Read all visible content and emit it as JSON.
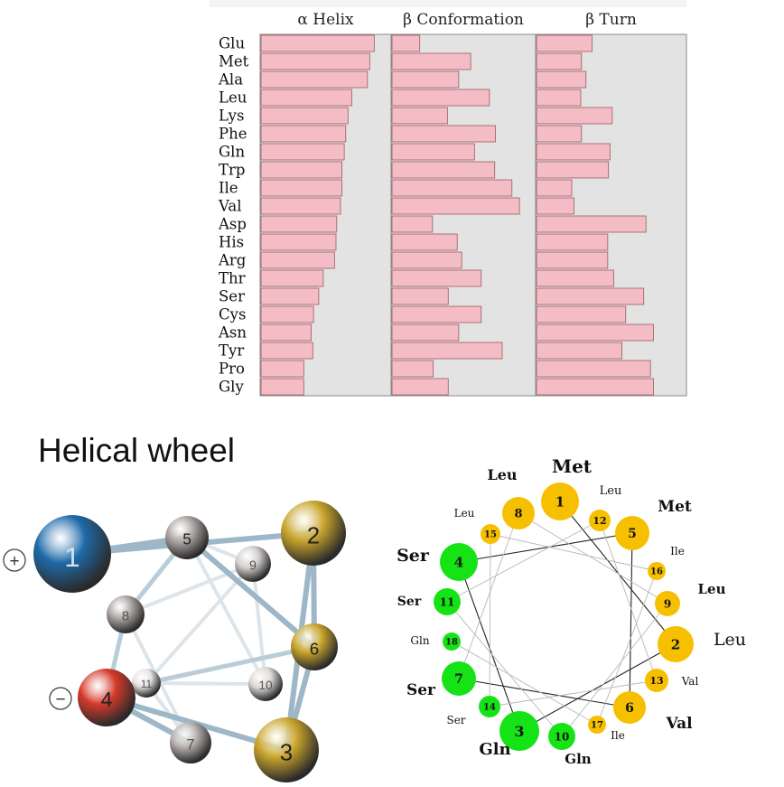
{
  "chart_data": {
    "type": "bar",
    "panels": [
      {
        "title": "α Helix",
        "values": [
          1.51,
          1.45,
          1.42,
          1.21,
          1.16,
          1.13,
          1.11,
          1.08,
          1.08,
          1.06,
          1.01,
          1.0,
          0.98,
          0.83,
          0.77,
          0.7,
          0.67,
          0.69,
          0.57,
          0.57
        ]
      },
      {
        "title": "β Conformation",
        "values": [
          0.37,
          1.05,
          0.89,
          1.3,
          0.74,
          1.38,
          1.1,
          1.37,
          1.6,
          1.7,
          0.54,
          0.87,
          0.93,
          1.19,
          0.75,
          1.19,
          0.89,
          1.47,
          0.55,
          0.75
        ]
      },
      {
        "title": "β Turn",
        "values": [
          0.74,
          0.6,
          0.66,
          0.59,
          1.01,
          0.6,
          0.98,
          0.96,
          0.47,
          0.5,
          1.46,
          0.95,
          0.95,
          1.03,
          1.43,
          1.19,
          1.56,
          1.14,
          1.52,
          1.56
        ]
      }
    ],
    "categories": [
      "Glu",
      "Met",
      "Ala",
      "Leu",
      "Lys",
      "Phe",
      "Gln",
      "Trp",
      "Ile",
      "Val",
      "Asp",
      "His",
      "Arg",
      "Thr",
      "Ser",
      "Cys",
      "Asn",
      "Tyr",
      "Pro",
      "Gly"
    ],
    "colors": {
      "bar": "#f4bcc4",
      "bar_stroke": "#9b5a62",
      "panel_bg": "#e3e3e3"
    }
  },
  "helical_wheel_3d": {
    "title": "Helical wheel",
    "charge_plus": "+",
    "charge_minus": "−",
    "nodes": [
      {
        "label": "1",
        "color": "#1e6aa8"
      },
      {
        "label": "2",
        "color": "#c9a52c"
      },
      {
        "label": "3",
        "color": "#c9a52c"
      },
      {
        "label": "4",
        "color": "#d53a2a"
      },
      {
        "label": "5",
        "color": "#a8a2a0"
      },
      {
        "label": "6",
        "color": "#c9a52c"
      },
      {
        "label": "7",
        "color": "#b4aeac"
      },
      {
        "label": "8",
        "color": "#aaa4a2"
      },
      {
        "label": "9",
        "color": "#d3cfcd"
      },
      {
        "label": "10",
        "color": "#dcd8d6"
      },
      {
        "label": "11",
        "color": "#e6e3e1"
      }
    ]
  },
  "helical_wheel_2d": {
    "colors": {
      "hydrophobic": "#f6c000",
      "hydrophilic": "#16e316"
    },
    "residues": [
      {
        "num": "1",
        "name": "Met"
      },
      {
        "num": "2",
        "name": "Leu"
      },
      {
        "num": "3",
        "name": "Gln"
      },
      {
        "num": "4",
        "name": "Ser"
      },
      {
        "num": "5",
        "name": "Met"
      },
      {
        "num": "6",
        "name": "Val"
      },
      {
        "num": "7",
        "name": "Ser"
      },
      {
        "num": "8",
        "name": "Leu"
      },
      {
        "num": "9",
        "name": "Leu"
      },
      {
        "num": "10",
        "name": "Gln"
      },
      {
        "num": "11",
        "name": "Ser"
      },
      {
        "num": "12",
        "name": "Leu"
      },
      {
        "num": "13",
        "name": "Val"
      },
      {
        "num": "14",
        "name": "Ser"
      },
      {
        "num": "15",
        "name": "Leu"
      },
      {
        "num": "16",
        "name": "Ile"
      },
      {
        "num": "17",
        "name": "Ile"
      },
      {
        "num": "18",
        "name": "Gln"
      }
    ]
  }
}
